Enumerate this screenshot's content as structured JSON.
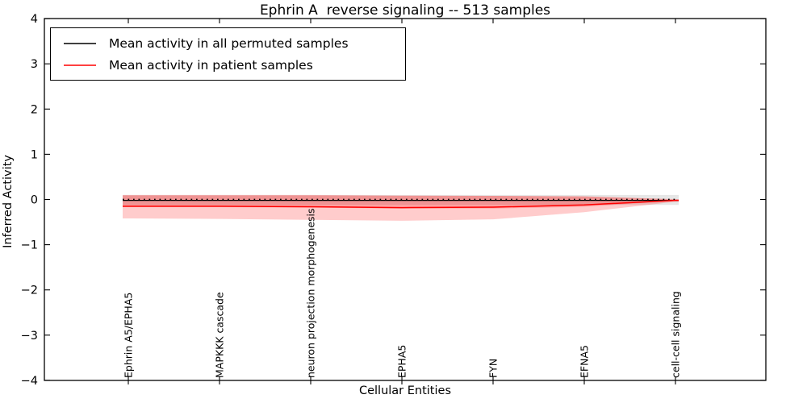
{
  "chart_data": {
    "type": "line",
    "title": "Ephrin A  reverse signaling -- 513 samples",
    "xlabel": "Cellular Entities",
    "ylabel": "Inferred Activity",
    "ylim": [
      -4,
      4
    ],
    "yticks": [
      4,
      3,
      2,
      1,
      0,
      -1,
      -2,
      -3,
      -4
    ],
    "grid": false,
    "legend_position": "upper left",
    "categories": [
      "Ephrin A5/EPHA5",
      "MAPKKK cascade",
      "neuron projection morphogenesis",
      "EPHA5",
      "FYN",
      "EFNA5",
      "cell-cell signaling"
    ],
    "zero_line": {
      "value": 0,
      "style": "dotted",
      "color": "#000000"
    },
    "series": [
      {
        "name": "Mean activity in all permuted samples",
        "color": "#000000",
        "values": [
          -0.02,
          -0.02,
          -0.02,
          -0.02,
          -0.02,
          -0.02,
          -0.02
        ]
      },
      {
        "name": "Mean activity in patient samples",
        "color": "#ff0000",
        "values": [
          -0.15,
          -0.15,
          -0.16,
          -0.18,
          -0.17,
          -0.12,
          -0.02
        ]
      }
    ],
    "bands": [
      {
        "name": "permuted-std-band",
        "color": "#808080",
        "alpha": 0.2,
        "upper": [
          0.1,
          0.1,
          0.1,
          0.1,
          0.1,
          0.1,
          0.1
        ],
        "lower": [
          -0.12,
          -0.12,
          -0.12,
          -0.12,
          -0.12,
          -0.12,
          -0.12
        ]
      },
      {
        "name": "patient-std-band-outer",
        "color": "#ff0000",
        "alpha": 0.2,
        "upper": [
          0.1,
          0.1,
          0.1,
          0.09,
          0.08,
          0.07,
          0.01
        ],
        "lower": [
          -0.42,
          -0.43,
          -0.45,
          -0.47,
          -0.44,
          -0.28,
          -0.05
        ]
      },
      {
        "name": "patient-std-band-inner",
        "color": "#ff0000",
        "alpha": 0.2,
        "upper": [
          0.09,
          0.09,
          0.09,
          0.08,
          0.08,
          0.07,
          0.0
        ],
        "lower": [
          -0.17,
          -0.17,
          -0.18,
          -0.2,
          -0.2,
          -0.16,
          -0.03
        ]
      }
    ]
  }
}
